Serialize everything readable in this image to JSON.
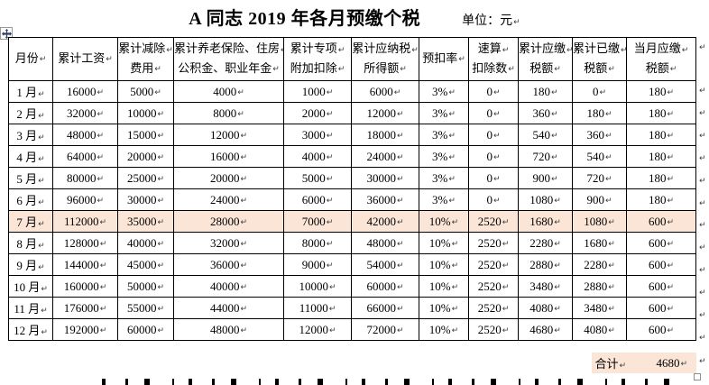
{
  "title": "A 同志 2019 年各月预缴个税",
  "unit_label": "单位：元",
  "marks": {
    "paragraph": "↵"
  },
  "colors": {
    "highlight": "#fbe5d6",
    "border": "#000000",
    "text": "#000000"
  },
  "table": {
    "headers": [
      {
        "lines": [
          "月份"
        ]
      },
      {
        "lines": [
          "累计工资"
        ]
      },
      {
        "lines": [
          "累计减除",
          "费用"
        ]
      },
      {
        "lines": [
          "累计养老保险、住房",
          "公积金、职业年金"
        ]
      },
      {
        "lines": [
          "累计专项",
          "附加扣除"
        ]
      },
      {
        "lines": [
          "累计应纳税",
          "所得额"
        ]
      },
      {
        "lines": [
          "预扣率"
        ]
      },
      {
        "lines": [
          "速算",
          "扣除数"
        ]
      },
      {
        "lines": [
          "累计应缴",
          "税额"
        ]
      },
      {
        "lines": [
          "累计已缴",
          "税额"
        ]
      },
      {
        "lines": [
          "当月应缴",
          "税额"
        ]
      }
    ],
    "rows": [
      [
        "1 月",
        "16000",
        "5000",
        "4000",
        "1000",
        "6000",
        "3%",
        "0",
        "180",
        "0",
        "180"
      ],
      [
        "2 月",
        "32000",
        "10000",
        "8000",
        "2000",
        "12000",
        "3%",
        "0",
        "360",
        "180",
        "180"
      ],
      [
        "3 月",
        "48000",
        "15000",
        "12000",
        "3000",
        "18000",
        "3%",
        "0",
        "540",
        "360",
        "180"
      ],
      [
        "4 月",
        "64000",
        "20000",
        "16000",
        "4000",
        "24000",
        "3%",
        "0",
        "720",
        "540",
        "180"
      ],
      [
        "5 月",
        "80000",
        "25000",
        "20000",
        "5000",
        "30000",
        "3%",
        "0",
        "900",
        "720",
        "180"
      ],
      [
        "6 月",
        "96000",
        "30000",
        "24000",
        "6000",
        "36000",
        "3%",
        "0",
        "1080",
        "900",
        "180"
      ],
      [
        "7 月",
        "112000",
        "35000",
        "28000",
        "7000",
        "42000",
        "10%",
        "2520",
        "1680",
        "1080",
        "600"
      ],
      [
        "8 月",
        "128000",
        "40000",
        "32000",
        "8000",
        "48000",
        "10%",
        "2520",
        "2280",
        "1680",
        "600"
      ],
      [
        "9 月",
        "144000",
        "45000",
        "36000",
        "9000",
        "54000",
        "10%",
        "2520",
        "2880",
        "2280",
        "600"
      ],
      [
        "10 月",
        "160000",
        "50000",
        "40000",
        "10000",
        "60000",
        "10%",
        "2520",
        "3480",
        "2880",
        "600"
      ],
      [
        "11 月",
        "176000",
        "55000",
        "44000",
        "11000",
        "66000",
        "10%",
        "2520",
        "4080",
        "3480",
        "600"
      ],
      [
        "12 月",
        "192000",
        "60000",
        "48000",
        "12000",
        "72000",
        "10%",
        "2520",
        "4680",
        "4080",
        "600"
      ]
    ],
    "highlighted_month": "7 月",
    "total": {
      "label": "合计",
      "value": "4680"
    }
  }
}
